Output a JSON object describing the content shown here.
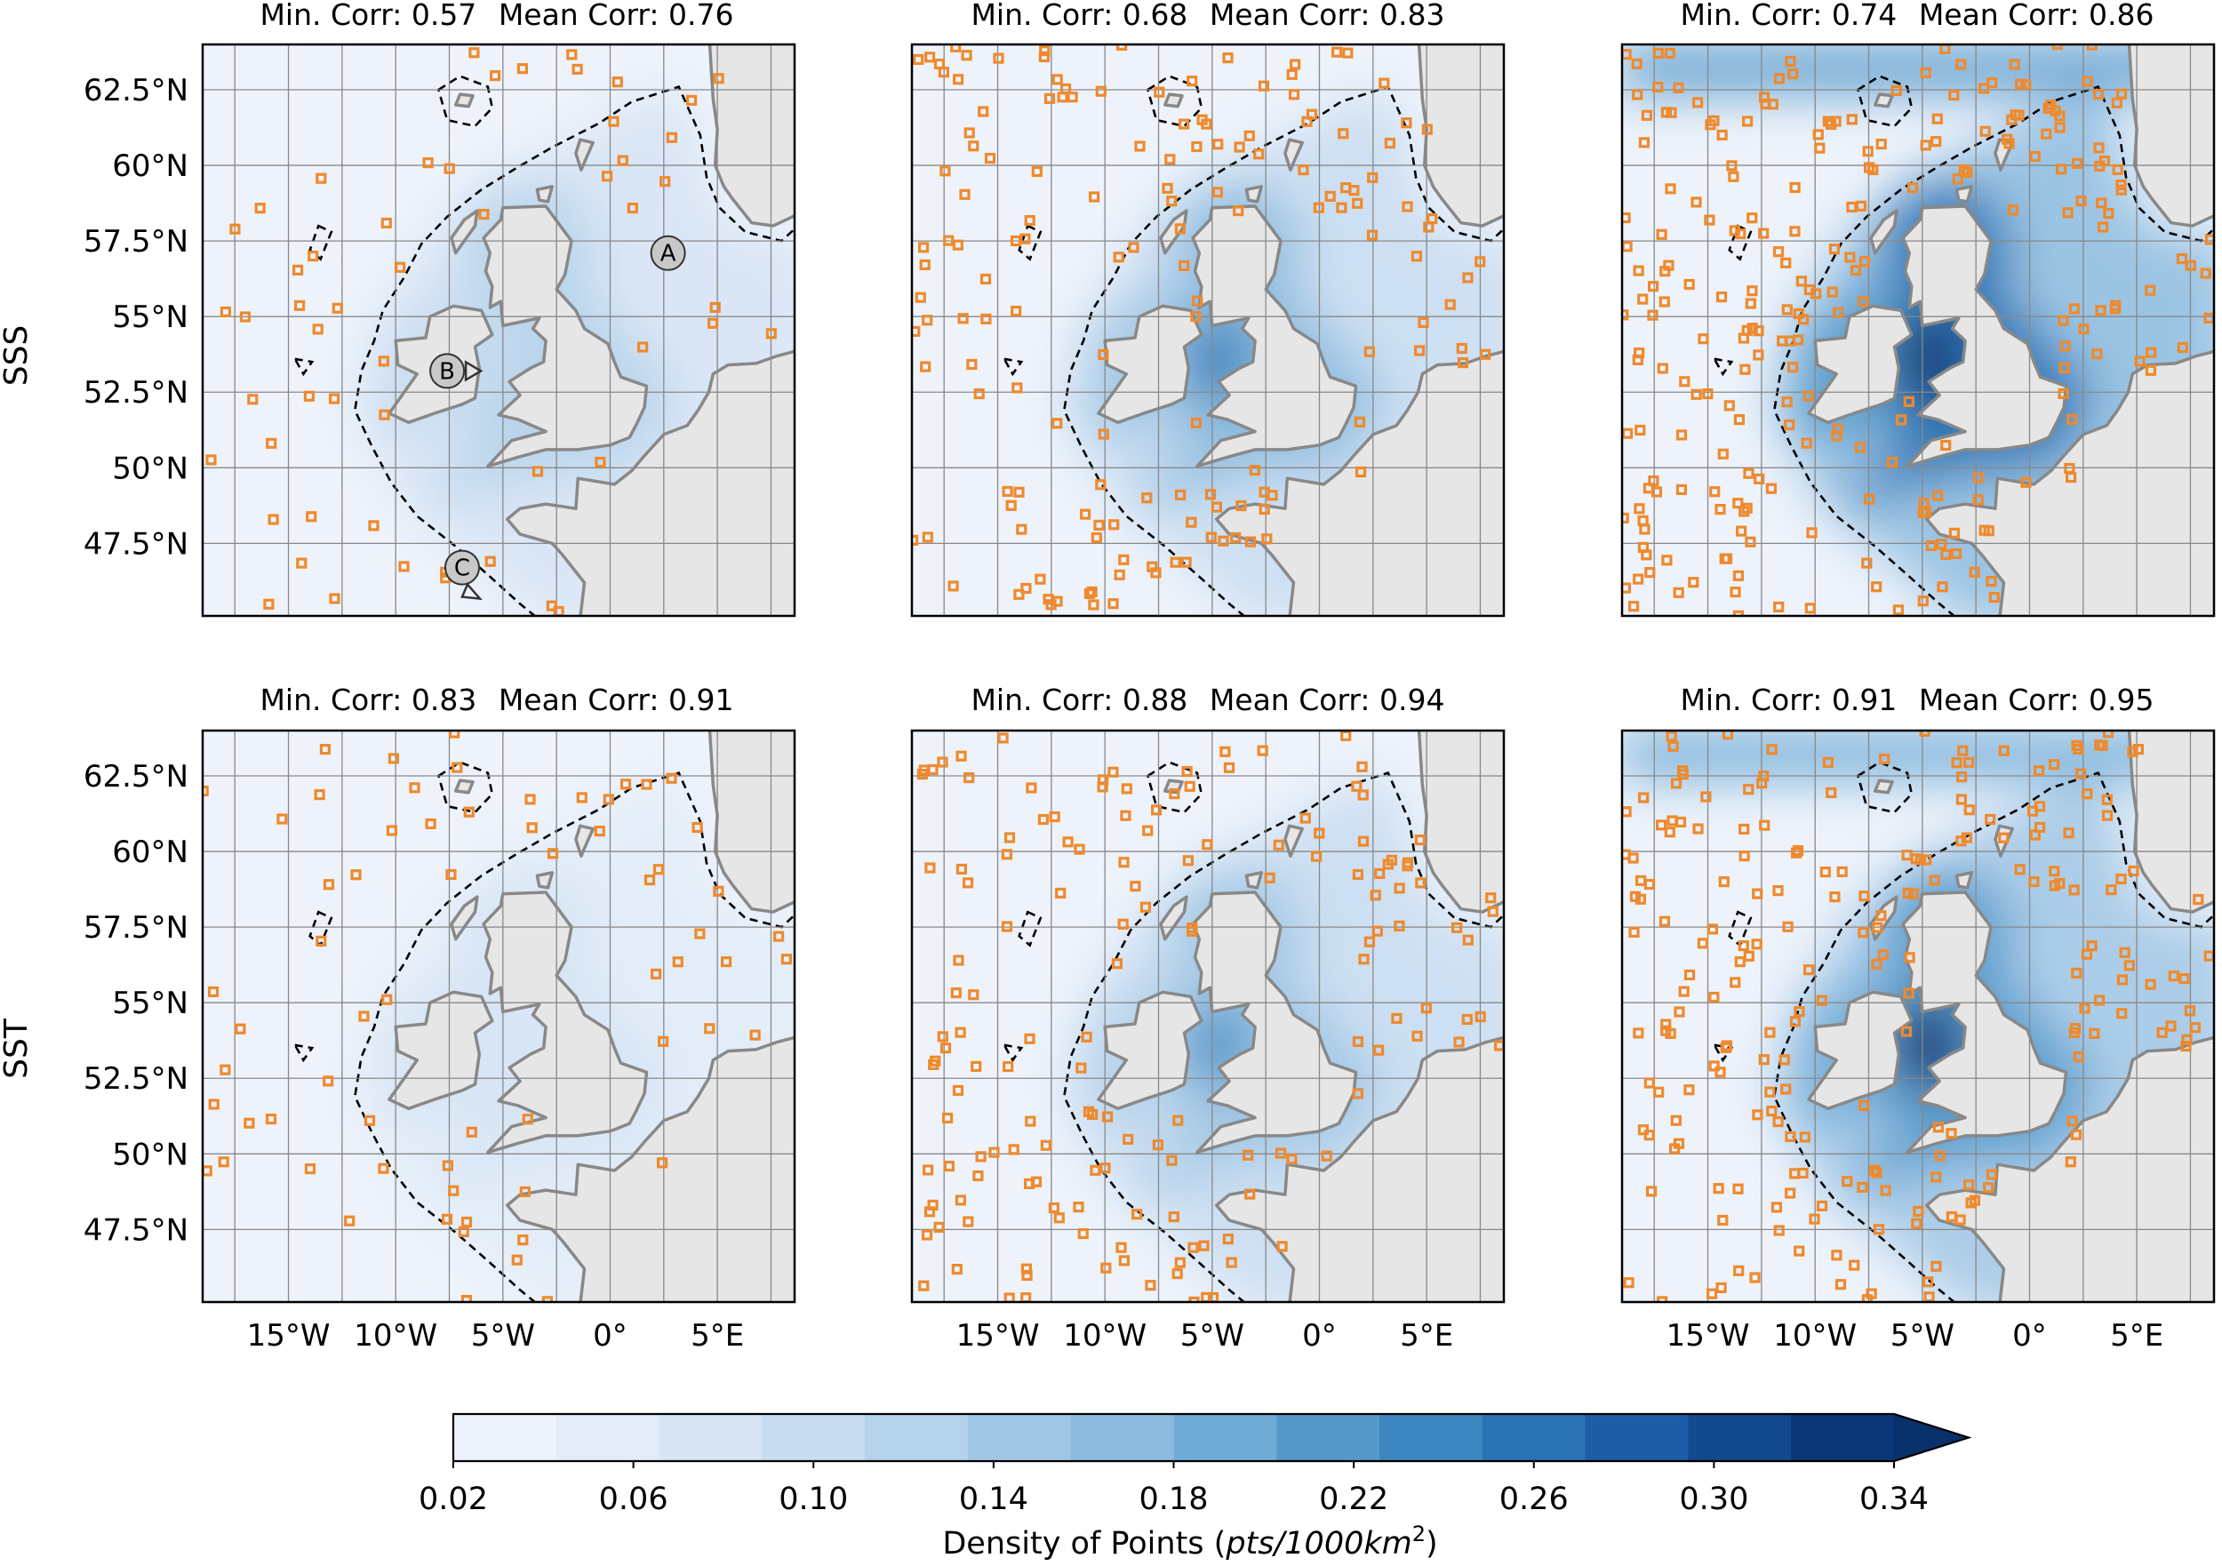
{
  "figure": {
    "row_labels": [
      "SSS",
      "SST"
    ],
    "panels": [
      {
        "row": 0,
        "col": 0,
        "min_label": "Min. Corr:",
        "min_value": "0.57",
        "mean_label": "Mean Corr:",
        "mean_value": "0.76",
        "density_level": 0.07,
        "point_count": 55
      },
      {
        "row": 0,
        "col": 1,
        "min_label": "Min. Corr:",
        "min_value": "0.68",
        "mean_label": "Mean Corr:",
        "mean_value": "0.83",
        "density_level": 0.1,
        "point_count": 150
      },
      {
        "row": 0,
        "col": 2,
        "min_label": "Min. Corr:",
        "min_value": "0.74",
        "mean_label": "Mean Corr:",
        "mean_value": "0.86",
        "density_level": 0.16,
        "point_count": 240
      },
      {
        "row": 1,
        "col": 0,
        "min_label": "Min. Corr:",
        "min_value": "0.83",
        "mean_label": "Mean Corr:",
        "mean_value": "0.91",
        "density_level": 0.05,
        "point_count": 65
      },
      {
        "row": 1,
        "col": 1,
        "min_label": "Min. Corr:",
        "min_value": "0.88",
        "mean_label": "Mean Corr:",
        "mean_value": "0.94",
        "density_level": 0.09,
        "point_count": 150
      },
      {
        "row": 1,
        "col": 2,
        "min_label": "Min. Corr:",
        "min_value": "0.91",
        "mean_label": "Mean Corr:",
        "mean_value": "0.95",
        "density_level": 0.14,
        "point_count": 210
      }
    ],
    "lat_ticks": [
      "62.5°N",
      "60°N",
      "57.5°N",
      "55°N",
      "52.5°N",
      "50°N",
      "47.5°N"
    ],
    "lat_values": [
      62.5,
      60,
      57.5,
      55,
      52.5,
      50,
      47.5
    ],
    "lon_ticks": [
      "15°W",
      "10°W",
      "5°W",
      "0°",
      "5°E"
    ],
    "lon_values": [
      -15,
      -10,
      -5,
      0,
      5
    ],
    "extent": {
      "lon_min": -19,
      "lon_max": 8.6,
      "lat_min": 45.1,
      "lat_max": 64
    },
    "markers": [
      {
        "label": "A",
        "lon": 2.7,
        "lat": 57.1,
        "arrow": ""
      },
      {
        "label": "B",
        "lon": -7.6,
        "lat": 53.2,
        "arrow": "right"
      },
      {
        "label": "C",
        "lon": -6.9,
        "lat": 46.7,
        "arrow": "down"
      }
    ],
    "colorbar": {
      "label_prefix": "Density of Points (",
      "label_units": "pts/1000km",
      "label_exp": "2",
      "label_suffix": ")",
      "tick_labels": [
        "0.02",
        "0.06",
        "0.10",
        "0.14",
        "0.18",
        "0.22",
        "0.26",
        "0.30",
        "0.34"
      ],
      "colors": [
        "#eef3fb",
        "#e2ecf8",
        "#d6e4f4",
        "#c8dcf0",
        "#b4d2ea",
        "#a0c6e4",
        "#8cbbde",
        "#6fabd6",
        "#5599cb",
        "#3d86c0",
        "#2a72b5",
        "#1c5da6",
        "#12498f",
        "#0a3877"
      ],
      "extend_color": "#08306b"
    },
    "colors": {
      "land": "#e6e6e6",
      "ocean_base": "#eef3fb",
      "coast": "#888888",
      "points": "#ee8a2e",
      "grid": "#888888"
    }
  }
}
